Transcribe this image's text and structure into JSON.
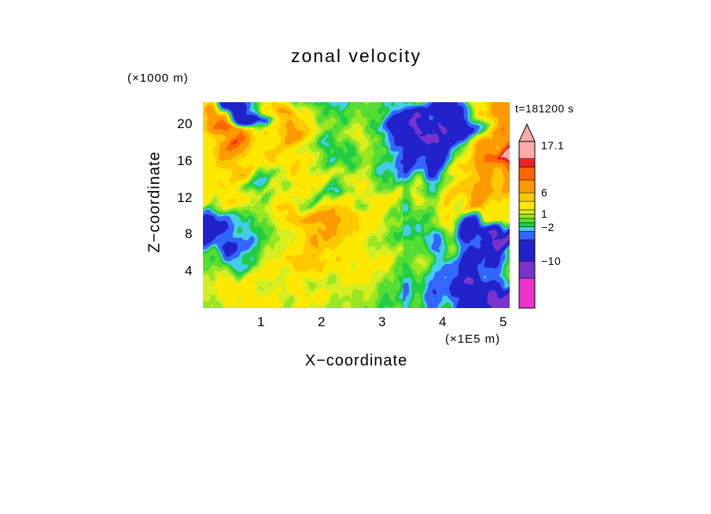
{
  "chart_data": {
    "type": "heatmap",
    "title": "zonal velocity",
    "xlabel": "X−coordinate",
    "ylabel": "Z−coordinate",
    "x_units": "(×1E5 m)",
    "y_units": "(×1000 m)",
    "time_label": "t=181200 s",
    "x_ticks": [
      1,
      2,
      3,
      4,
      5
    ],
    "y_ticks": [
      4,
      8,
      12,
      16,
      20
    ],
    "x_range": [
      0,
      5.1
    ],
    "y_range": [
      0,
      22.4
    ],
    "legend_position": "right",
    "color_scale": {
      "edges": [
        -21,
        -14,
        -10,
        -5,
        -3,
        -2,
        -1,
        0,
        1,
        2,
        4,
        6,
        9,
        12,
        14,
        18
      ],
      "colors": [
        "#ee33cc",
        "#7733cc",
        "#2222cc",
        "#3366ff",
        "#44ccee",
        "#22cc44",
        "#55dd33",
        "#99e622",
        "#d4ee22",
        "#ffe800",
        "#ffc800",
        "#ff9900",
        "#ff6600",
        "#ee2222",
        "#ffaaaa"
      ]
    },
    "colorbar": {
      "labels": [
        {
          "text": "17.1",
          "value": 17.1
        },
        {
          "text": "6",
          "value": 6
        },
        {
          "text": "1",
          "value": 1
        },
        {
          "text": "−2",
          "value": -2
        },
        {
          "text": "−10",
          "value": -10
        }
      ]
    },
    "grid": {
      "rows": 14,
      "cols": 24,
      "values": [
        [
          -1,
          -2,
          -8,
          -9,
          -3,
          0,
          3,
          1,
          -1,
          -3,
          -2,
          -1,
          0,
          -1,
          -2,
          -1,
          0,
          -2,
          -6,
          -9,
          -7,
          2,
          7,
          8
        ],
        [
          1,
          6,
          7,
          -7,
          -9,
          3,
          7,
          6,
          2,
          -1,
          -2,
          0,
          1,
          0,
          -2,
          -4,
          -8,
          -10,
          -9,
          -8,
          -3,
          5,
          9,
          7
        ],
        [
          3,
          8,
          13,
          7,
          3,
          4,
          6,
          8,
          4,
          1,
          -1,
          1,
          2,
          1,
          -3,
          -8,
          -11,
          -9,
          -10,
          -8,
          -2,
          4,
          8,
          6
        ],
        [
          4,
          7,
          8,
          5,
          3,
          3,
          5,
          4,
          2,
          0,
          -2,
          -1,
          0,
          -2,
          -5,
          -9,
          -8,
          -6,
          -8,
          -4,
          2,
          6,
          9,
          15
        ],
        [
          3,
          4,
          5,
          6,
          4,
          3,
          4,
          3,
          1,
          -1,
          -2,
          0,
          2,
          0,
          -3,
          -6,
          -7,
          -4,
          -6,
          -2,
          3,
          6,
          7,
          8
        ],
        [
          2,
          3,
          3,
          -1,
          -3,
          -1,
          2,
          4,
          3,
          2,
          0,
          2,
          3,
          2,
          -1,
          -3,
          -2,
          0,
          2,
          3,
          5,
          7,
          6,
          5
        ],
        [
          3,
          4,
          3,
          2,
          1,
          2,
          3,
          2,
          0,
          -1,
          -2,
          -1,
          1,
          3,
          3,
          2,
          1,
          2,
          4,
          6,
          7,
          6,
          4,
          3
        ],
        [
          2,
          0,
          -2,
          -3,
          -2,
          1,
          3,
          5,
          7,
          7,
          6,
          4,
          3,
          2,
          0,
          -1,
          -2,
          -1,
          1,
          3,
          5,
          6,
          4,
          2
        ],
        [
          -7,
          -9,
          -6,
          -3,
          -2,
          -1,
          2,
          4,
          6,
          7,
          6,
          4,
          3,
          1,
          0,
          -1,
          -2,
          -3,
          -2,
          0,
          -4,
          -8,
          -14,
          -16
        ],
        [
          -5,
          -7,
          -4,
          -2,
          -1,
          1,
          2,
          3,
          5,
          6,
          5,
          4,
          3,
          2,
          1,
          0,
          -1,
          -2,
          -1,
          -3,
          -7,
          -9,
          -6,
          -3
        ],
        [
          -1,
          -2,
          -3,
          -2,
          0,
          2,
          3,
          4,
          5,
          5,
          4,
          3,
          2,
          3,
          2,
          1,
          0,
          -1,
          -2,
          -4,
          -6,
          -8,
          -5,
          -2
        ],
        [
          0,
          1,
          2,
          3,
          3,
          2,
          3,
          2,
          1,
          2,
          3,
          3,
          2,
          1,
          0,
          -1,
          -1,
          -2,
          -3,
          -5,
          -7,
          -6,
          -4,
          -2
        ],
        [
          1,
          2,
          3,
          3,
          2,
          1,
          2,
          3,
          2,
          1,
          1,
          2,
          1,
          0,
          -1,
          -1,
          -2,
          -3,
          -4,
          -6,
          -8,
          -10,
          -14,
          -16
        ],
        [
          0,
          1,
          2,
          2,
          3,
          2,
          1,
          2,
          3,
          2,
          1,
          1,
          0,
          1,
          0,
          -1,
          -2,
          -2,
          -3,
          -5,
          -7,
          -9,
          -12,
          -15
        ]
      ]
    }
  }
}
